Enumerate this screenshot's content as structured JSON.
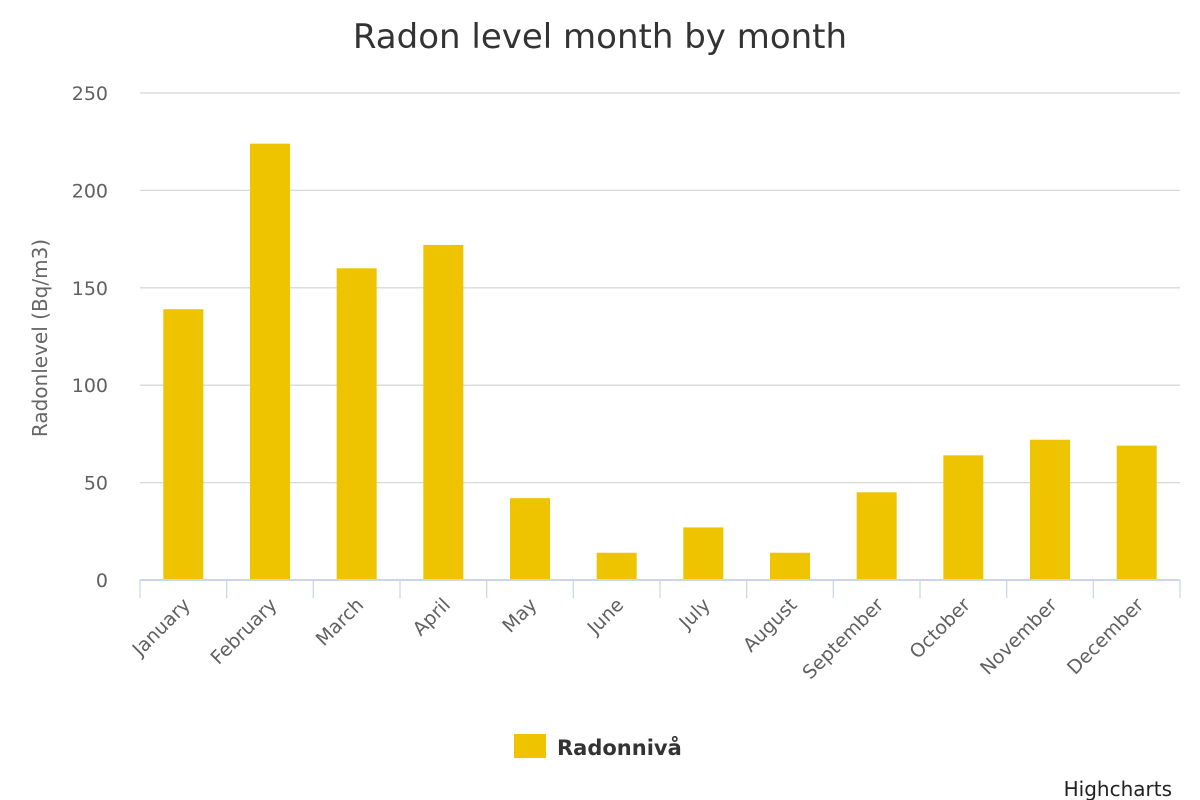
{
  "chart_data": {
    "type": "bar",
    "title": "Radon level month by month",
    "ylabel": "Radonlevel (Bq/m3)",
    "xlabel": "",
    "ylim": [
      0,
      250
    ],
    "yticks": [
      0,
      50,
      100,
      150,
      200,
      250
    ],
    "grid": true,
    "legend_position": "bottom-center",
    "categories": [
      "January",
      "February",
      "March",
      "April",
      "May",
      "June",
      "July",
      "August",
      "September",
      "October",
      "November",
      "December"
    ],
    "series": [
      {
        "name": "Radonnivå",
        "color": "#eec400",
        "values": [
          139,
          224,
          160,
          172,
          42,
          14,
          27,
          14,
          45,
          64,
          72,
          69
        ]
      }
    ]
  },
  "credits": "Highcharts"
}
